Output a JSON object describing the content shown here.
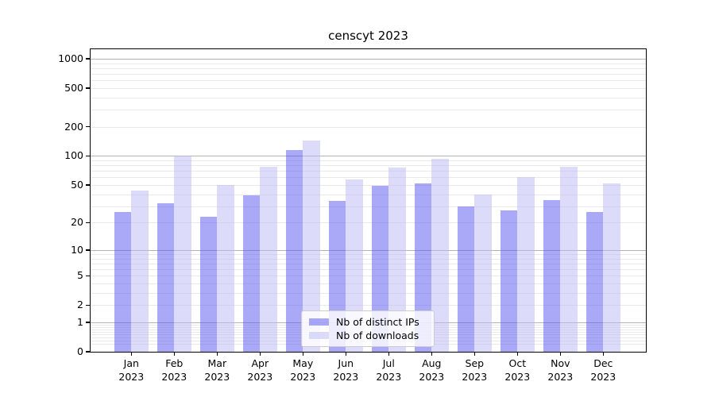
{
  "chart_data": {
    "type": "bar",
    "title": "censcyt 2023",
    "categories": [
      "Jan",
      "Feb",
      "Mar",
      "Apr",
      "May",
      "Jun",
      "Jul",
      "Aug",
      "Sep",
      "Oct",
      "Nov",
      "Dec"
    ],
    "x_tick_year": "2023",
    "series": [
      {
        "name": "Nb of distinct IPs",
        "color": "rgba(83,83,239,0.5)",
        "values": [
          26,
          32,
          23,
          39,
          115,
          34,
          49,
          52,
          30,
          27,
          35,
          26
        ]
      },
      {
        "name": "Nb of downloads",
        "color": "rgba(185,185,245,0.5)",
        "values": [
          44,
          100,
          50,
          77,
          145,
          57,
          76,
          93,
          40,
          60,
          78,
          52
        ]
      }
    ],
    "yscale": "log1p",
    "ylim": [
      0,
      1250
    ],
    "y_ticks": [
      0,
      1,
      2,
      5,
      10,
      20,
      50,
      100,
      200,
      500,
      1000
    ],
    "grid": "on",
    "grid_major_values": [
      1,
      10,
      100,
      1000
    ],
    "grid_major_color": "#b3b3b3",
    "grid_minor_color": "#e9e9e9",
    "legend_position": "lower center",
    "xlabel": "",
    "ylabel": ""
  }
}
